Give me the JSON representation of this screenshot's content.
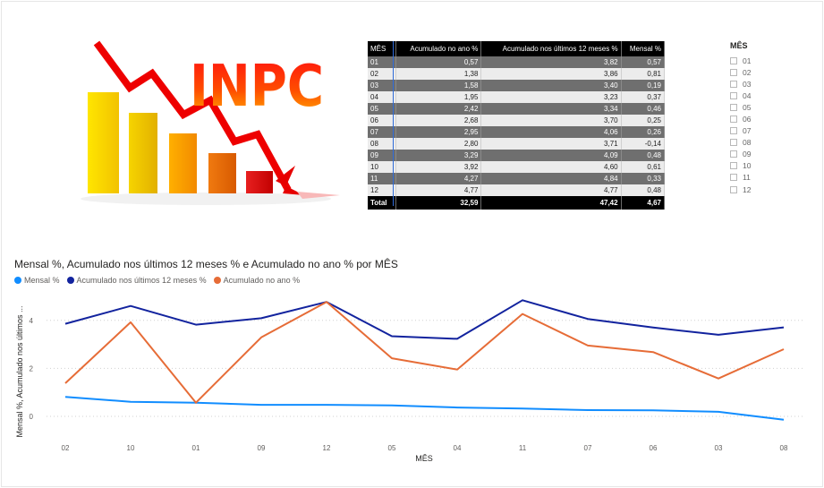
{
  "logo": {
    "text": "INPC"
  },
  "table": {
    "headers": [
      "MÊS",
      "Acumulado no ano %",
      "Acumulado nos últimos 12 meses %",
      "Mensal %"
    ],
    "rows": [
      [
        "01",
        "0,57",
        "3,82",
        "0,57"
      ],
      [
        "02",
        "1,38",
        "3,86",
        "0,81"
      ],
      [
        "03",
        "1,58",
        "3,40",
        "0,19"
      ],
      [
        "04",
        "1,95",
        "3,23",
        "0,37"
      ],
      [
        "05",
        "2,42",
        "3,34",
        "0,46"
      ],
      [
        "06",
        "2,68",
        "3,70",
        "0,25"
      ],
      [
        "07",
        "2,95",
        "4,06",
        "0,26"
      ],
      [
        "08",
        "2,80",
        "3,71",
        "-0,14"
      ],
      [
        "09",
        "3,29",
        "4,09",
        "0,48"
      ],
      [
        "10",
        "3,92",
        "4,60",
        "0,61"
      ],
      [
        "11",
        "4,27",
        "4,84",
        "0,33"
      ],
      [
        "12",
        "4,77",
        "4,77",
        "0,48"
      ]
    ],
    "total": [
      "Total",
      "32,59",
      "47,42",
      "4,67"
    ]
  },
  "slicer": {
    "title": "MÊS",
    "items": [
      "01",
      "02",
      "03",
      "04",
      "05",
      "06",
      "07",
      "08",
      "09",
      "10",
      "11",
      "12"
    ]
  },
  "chart_data": {
    "type": "line",
    "title": "Mensal %, Acumulado nos últimos 12 meses % e Acumulado no ano % por MÊS",
    "xlabel": "MÊS",
    "ylabel": "Mensal %, Acumulado nos últimos ...",
    "categories": [
      "02",
      "10",
      "01",
      "09",
      "12",
      "05",
      "04",
      "11",
      "07",
      "06",
      "03",
      "08"
    ],
    "y_ticks": [
      "0",
      "2",
      "4"
    ],
    "ylim": [
      -1,
      5
    ],
    "grid": true,
    "legend_position": "top-left",
    "series": [
      {
        "name": "Mensal %",
        "color": "#118DFF",
        "values": [
          0.81,
          0.61,
          0.57,
          0.48,
          0.48,
          0.46,
          0.37,
          0.33,
          0.26,
          0.25,
          0.19,
          -0.14
        ]
      },
      {
        "name": "Acumulado nos últimos 12 meses %",
        "color": "#12239E",
        "values": [
          3.86,
          4.6,
          3.82,
          4.09,
          4.77,
          3.34,
          3.23,
          4.84,
          4.06,
          3.7,
          3.4,
          3.71
        ]
      },
      {
        "name": "Acumulado no ano %",
        "color": "#E66C37",
        "values": [
          1.38,
          3.92,
          0.57,
          3.29,
          4.77,
          2.42,
          1.95,
          4.27,
          2.95,
          2.68,
          1.58,
          2.8
        ]
      }
    ]
  }
}
